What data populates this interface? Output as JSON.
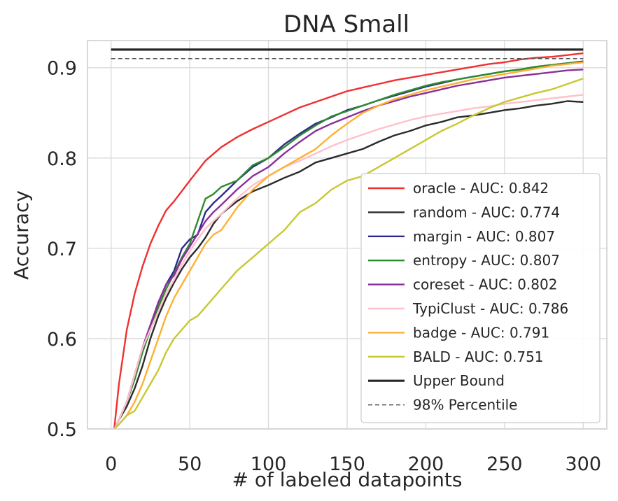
{
  "chart_data": {
    "type": "line",
    "title": "DNA Small",
    "xlabel": "# of labeled datapoints",
    "ylabel": "Accuracy",
    "xlim": [
      -15,
      315
    ],
    "ylim": [
      0.5,
      0.93
    ],
    "xticks": [
      0,
      50,
      100,
      150,
      200,
      250,
      300
    ],
    "yticks": [
      0.5,
      0.6,
      0.7,
      0.8,
      0.9
    ],
    "xtick_labels": [
      "0",
      "50",
      "100",
      "150",
      "200",
      "250",
      "300"
    ],
    "ytick_labels": [
      "0.5",
      "0.6",
      "0.7",
      "0.8",
      "0.9"
    ],
    "grid": true,
    "legend_position": "lower-right",
    "series": [
      {
        "name": "oracle - AUC: 0.842",
        "color": "#f03030",
        "style": "solid",
        "x": [
          2,
          5,
          10,
          15,
          20,
          25,
          30,
          35,
          40,
          50,
          60,
          70,
          80,
          90,
          100,
          110,
          120,
          130,
          140,
          150,
          160,
          170,
          180,
          190,
          200,
          210,
          220,
          230,
          240,
          250,
          260,
          270,
          280,
          290,
          300
        ],
        "y": [
          0.5,
          0.55,
          0.61,
          0.65,
          0.68,
          0.705,
          0.725,
          0.742,
          0.752,
          0.775,
          0.797,
          0.812,
          0.823,
          0.832,
          0.84,
          0.848,
          0.856,
          0.862,
          0.868,
          0.874,
          0.878,
          0.882,
          0.886,
          0.889,
          0.892,
          0.895,
          0.898,
          0.901,
          0.904,
          0.906,
          0.909,
          0.911,
          0.912,
          0.914,
          0.916
        ]
      },
      {
        "name": "random - AUC: 0.774",
        "color": "#2b2b2b",
        "style": "solid",
        "x": [
          2,
          5,
          10,
          15,
          20,
          25,
          30,
          35,
          40,
          45,
          50,
          55,
          60,
          65,
          70,
          80,
          90,
          100,
          110,
          120,
          130,
          140,
          150,
          160,
          170,
          180,
          190,
          200,
          210,
          220,
          230,
          240,
          250,
          260,
          270,
          280,
          290,
          300
        ],
        "y": [
          0.5,
          0.51,
          0.525,
          0.545,
          0.57,
          0.6,
          0.625,
          0.645,
          0.662,
          0.677,
          0.69,
          0.7,
          0.712,
          0.727,
          0.738,
          0.752,
          0.763,
          0.77,
          0.778,
          0.785,
          0.795,
          0.8,
          0.805,
          0.81,
          0.818,
          0.825,
          0.83,
          0.836,
          0.84,
          0.845,
          0.847,
          0.85,
          0.853,
          0.855,
          0.858,
          0.86,
          0.863,
          0.862
        ]
      },
      {
        "name": "margin - AUC: 0.807",
        "color": "#2b2b8c",
        "style": "solid",
        "x": [
          2,
          5,
          10,
          15,
          20,
          25,
          30,
          35,
          40,
          45,
          50,
          55,
          60,
          65,
          70,
          80,
          90,
          100,
          110,
          120,
          130,
          140,
          150,
          160,
          170,
          180,
          190,
          200,
          210,
          220,
          230,
          240,
          250,
          260,
          270,
          280,
          290,
          300
        ],
        "y": [
          0.5,
          0.51,
          0.53,
          0.56,
          0.59,
          0.615,
          0.64,
          0.66,
          0.675,
          0.7,
          0.71,
          0.715,
          0.74,
          0.75,
          0.758,
          0.775,
          0.79,
          0.8,
          0.815,
          0.827,
          0.838,
          0.845,
          0.853,
          0.858,
          0.864,
          0.869,
          0.874,
          0.879,
          0.883,
          0.887,
          0.89,
          0.893,
          0.896,
          0.898,
          0.901,
          0.903,
          0.905,
          0.907
        ]
      },
      {
        "name": "entropy - AUC: 0.807",
        "color": "#2e8b2e",
        "style": "solid",
        "x": [
          2,
          5,
          10,
          15,
          20,
          25,
          30,
          35,
          40,
          45,
          50,
          55,
          60,
          65,
          70,
          80,
          90,
          100,
          110,
          120,
          130,
          140,
          150,
          160,
          170,
          180,
          190,
          200,
          210,
          220,
          230,
          240,
          250,
          260,
          270,
          280,
          290,
          300
        ],
        "y": [
          0.5,
          0.51,
          0.53,
          0.555,
          0.585,
          0.61,
          0.635,
          0.655,
          0.672,
          0.69,
          0.705,
          0.73,
          0.755,
          0.76,
          0.768,
          0.775,
          0.792,
          0.8,
          0.812,
          0.825,
          0.836,
          0.846,
          0.852,
          0.858,
          0.864,
          0.87,
          0.875,
          0.88,
          0.884,
          0.887,
          0.89,
          0.893,
          0.896,
          0.898,
          0.901,
          0.903,
          0.905,
          0.906
        ]
      },
      {
        "name": "coreset - AUC: 0.802",
        "color": "#8b2e9c",
        "style": "solid",
        "x": [
          2,
          5,
          10,
          15,
          20,
          25,
          30,
          35,
          40,
          45,
          50,
          55,
          60,
          65,
          70,
          80,
          90,
          100,
          110,
          120,
          130,
          140,
          150,
          160,
          170,
          180,
          190,
          200,
          210,
          220,
          230,
          240,
          250,
          260,
          270,
          280,
          290,
          300
        ],
        "y": [
          0.5,
          0.51,
          0.53,
          0.56,
          0.59,
          0.615,
          0.64,
          0.66,
          0.67,
          0.688,
          0.702,
          0.716,
          0.73,
          0.74,
          0.748,
          0.765,
          0.78,
          0.79,
          0.805,
          0.818,
          0.83,
          0.838,
          0.845,
          0.852,
          0.858,
          0.863,
          0.868,
          0.872,
          0.876,
          0.88,
          0.883,
          0.886,
          0.889,
          0.891,
          0.893,
          0.895,
          0.897,
          0.898
        ]
      },
      {
        "name": "TypiClust - AUC: 0.786",
        "color": "#ffc0cb",
        "style": "solid",
        "x": [
          2,
          5,
          10,
          15,
          20,
          25,
          30,
          35,
          40,
          45,
          50,
          55,
          60,
          65,
          70,
          80,
          90,
          100,
          110,
          120,
          130,
          140,
          150,
          160,
          170,
          180,
          190,
          200,
          210,
          220,
          230,
          240,
          250,
          260,
          270,
          280,
          290,
          300
        ],
        "y": [
          0.5,
          0.51,
          0.53,
          0.56,
          0.59,
          0.61,
          0.63,
          0.65,
          0.665,
          0.682,
          0.697,
          0.71,
          0.722,
          0.73,
          0.738,
          0.755,
          0.77,
          0.78,
          0.79,
          0.797,
          0.805,
          0.813,
          0.82,
          0.826,
          0.832,
          0.837,
          0.842,
          0.846,
          0.849,
          0.852,
          0.855,
          0.857,
          0.86,
          0.862,
          0.864,
          0.866,
          0.868,
          0.87
        ]
      },
      {
        "name": "badge - AUC: 0.791",
        "color": "#ffb030",
        "style": "solid",
        "x": [
          2,
          5,
          10,
          15,
          20,
          25,
          30,
          35,
          40,
          45,
          50,
          55,
          60,
          65,
          70,
          80,
          90,
          100,
          110,
          120,
          130,
          140,
          150,
          160,
          170,
          180,
          190,
          200,
          210,
          220,
          230,
          240,
          250,
          260,
          270,
          280,
          290,
          300
        ],
        "y": [
          0.5,
          0.505,
          0.515,
          0.53,
          0.55,
          0.575,
          0.6,
          0.625,
          0.645,
          0.66,
          0.675,
          0.69,
          0.705,
          0.715,
          0.72,
          0.745,
          0.765,
          0.78,
          0.79,
          0.8,
          0.81,
          0.825,
          0.838,
          0.85,
          0.858,
          0.865,
          0.87,
          0.875,
          0.879,
          0.883,
          0.887,
          0.89,
          0.893,
          0.896,
          0.899,
          0.902,
          0.904,
          0.906
        ]
      },
      {
        "name": "BALD - AUC: 0.751",
        "color": "#c8c832",
        "style": "solid",
        "x": [
          2,
          5,
          10,
          15,
          20,
          25,
          30,
          35,
          40,
          45,
          50,
          55,
          60,
          65,
          70,
          80,
          90,
          100,
          110,
          120,
          130,
          140,
          150,
          160,
          170,
          180,
          190,
          200,
          210,
          220,
          230,
          240,
          250,
          260,
          270,
          280,
          290,
          300
        ],
        "y": [
          0.5,
          0.505,
          0.515,
          0.52,
          0.535,
          0.55,
          0.565,
          0.585,
          0.6,
          0.61,
          0.62,
          0.625,
          0.635,
          0.645,
          0.655,
          0.675,
          0.69,
          0.705,
          0.72,
          0.74,
          0.75,
          0.765,
          0.775,
          0.78,
          0.79,
          0.8,
          0.81,
          0.82,
          0.83,
          0.838,
          0.847,
          0.855,
          0.862,
          0.867,
          0.872,
          0.876,
          0.882,
          0.888
        ]
      },
      {
        "name": "Upper Bound",
        "color": "#262626",
        "style": "bold",
        "x": [
          0,
          300
        ],
        "y": [
          0.92,
          0.92
        ]
      },
      {
        "name": "98% Percentile",
        "color": "#555555",
        "style": "dashed",
        "x": [
          0,
          300
        ],
        "y": [
          0.91,
          0.91
        ]
      }
    ]
  }
}
